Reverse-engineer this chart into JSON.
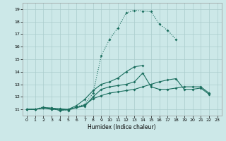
{
  "title": "",
  "xlabel": "Humidex (Indice chaleur)",
  "background_color": "#cce8e8",
  "grid_color": "#aacccc",
  "line_color": "#1a6e5e",
  "xlim": [
    -0.5,
    23.5
  ],
  "ylim": [
    10.5,
    19.5
  ],
  "xticks": [
    0,
    1,
    2,
    3,
    4,
    5,
    6,
    7,
    8,
    9,
    10,
    11,
    12,
    13,
    14,
    15,
    16,
    17,
    18,
    19,
    20,
    21,
    22,
    23
  ],
  "yticks": [
    11,
    12,
    13,
    14,
    15,
    16,
    17,
    18,
    19
  ],
  "series_dotted": {
    "x": [
      0,
      1,
      2,
      3,
      4,
      5,
      6,
      7,
      8,
      9,
      10,
      11,
      12,
      13,
      14,
      15,
      16,
      17,
      18
    ],
    "y": [
      11,
      11,
      11.2,
      11.0,
      11.0,
      10.9,
      11.2,
      11.4,
      12.3,
      15.3,
      16.6,
      17.5,
      18.7,
      18.9,
      18.85,
      18.8,
      17.8,
      17.3,
      16.6
    ]
  },
  "series_solid1": {
    "x": [
      0,
      1,
      2,
      3,
      4,
      5,
      6,
      7,
      8,
      9,
      10,
      11,
      12,
      13,
      14
    ],
    "y": [
      11,
      11,
      11.1,
      11.1,
      10.9,
      11.0,
      11.3,
      11.8,
      12.5,
      13.0,
      13.2,
      13.5,
      14.0,
      14.4,
      14.5
    ]
  },
  "series_solid2": {
    "x": [
      0,
      1,
      2,
      3,
      4,
      5,
      6,
      7,
      8,
      9,
      10,
      11,
      12,
      13,
      14,
      15,
      16,
      17,
      18,
      19,
      20,
      21,
      22
    ],
    "y": [
      11,
      11,
      11.15,
      11.1,
      11.05,
      11.0,
      11.15,
      11.25,
      12.0,
      12.6,
      12.8,
      12.9,
      13.0,
      13.2,
      13.9,
      12.8,
      12.6,
      12.6,
      12.7,
      12.8,
      12.8,
      12.8,
      12.3
    ]
  },
  "series_solid3": {
    "x": [
      0,
      1,
      2,
      3,
      4,
      5,
      6,
      7,
      8,
      9,
      10,
      11,
      12,
      13,
      14,
      15,
      16,
      17,
      18,
      19,
      20,
      21,
      22
    ],
    "y": [
      11,
      11,
      11.1,
      11.0,
      11.0,
      10.95,
      11.15,
      11.35,
      11.85,
      12.1,
      12.3,
      12.4,
      12.5,
      12.6,
      12.8,
      13.0,
      13.2,
      13.35,
      13.45,
      12.6,
      12.6,
      12.7,
      12.2
    ]
  }
}
